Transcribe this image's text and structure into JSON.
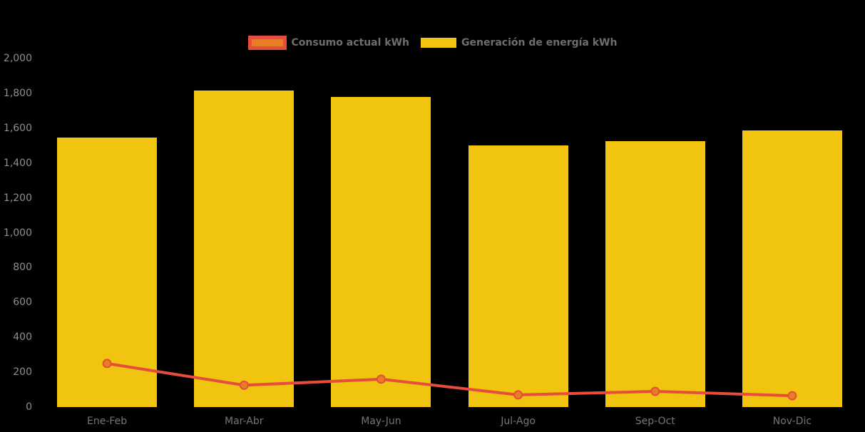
{
  "chart_data": {
    "type": "combo",
    "categories": [
      "Ene-Feb",
      "Mar-Abr",
      "May-Jun",
      "Jul-Ago",
      "Sep-Oct",
      "Nov-Dic"
    ],
    "series": [
      {
        "name": "Consumo actual kWh",
        "type": "line",
        "values": [
          250,
          125,
          160,
          70,
          90,
          65
        ],
        "color": "#E74C3C",
        "anchor_color": "#E67E22"
      },
      {
        "name": "Generación de energía kWh",
        "type": "bar",
        "values": [
          1545,
          1815,
          1780,
          1500,
          1525,
          1585
        ],
        "color": "#F1C40F"
      }
    ],
    "xlabel": "",
    "ylabel": "",
    "ylim": [
      0,
      2000
    ],
    "y_ticks": [
      {
        "value": 0,
        "label": "0"
      },
      {
        "value": 200,
        "label": "200"
      },
      {
        "value": 400,
        "label": "400"
      },
      {
        "value": 600,
        "label": "600"
      },
      {
        "value": 800,
        "label": "800"
      },
      {
        "value": 1000,
        "label": "1,000"
      },
      {
        "value": 1200,
        "label": "1,200"
      },
      {
        "value": 1400,
        "label": "1,400"
      },
      {
        "value": 1600,
        "label": "1,600"
      },
      {
        "value": 1800,
        "label": "1,800"
      },
      {
        "value": 2000,
        "label": "2,000"
      }
    ],
    "grid": false,
    "legend_position": "top",
    "background_color": "#000000",
    "axis_label_color": "#8F8F8F",
    "category_label_color": "#757575",
    "legend_text_color": "#6E6E6E"
  }
}
